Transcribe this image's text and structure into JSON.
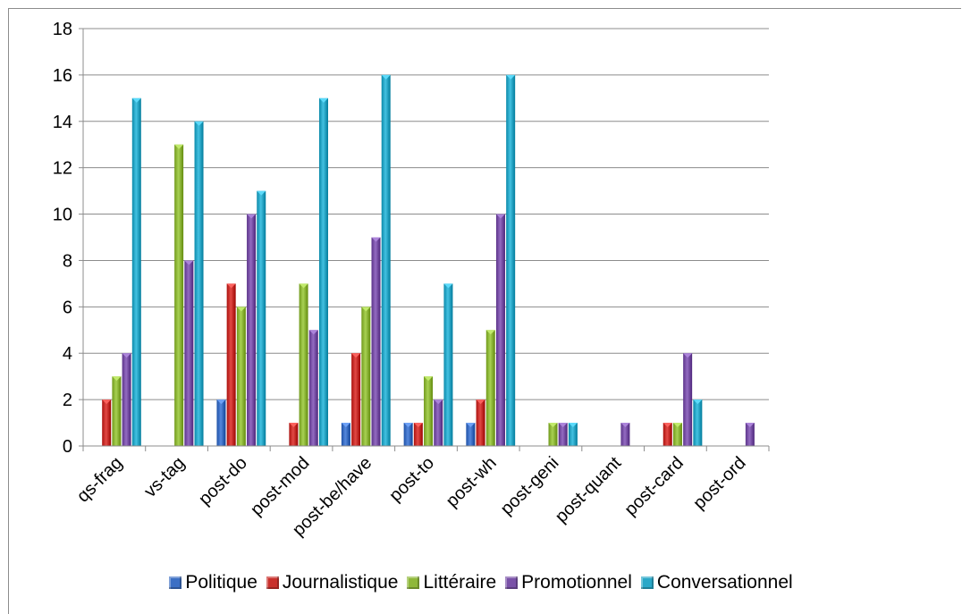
{
  "chart_data": {
    "type": "bar",
    "categories": [
      "qs-frag",
      "vs-tag",
      "post-do",
      "post-mod",
      "post-be/have",
      "post-to",
      "post-wh",
      "post-geni",
      "post-quant",
      "post-card",
      "post-ord"
    ],
    "series": [
      {
        "name": "Politique",
        "color": "#3c6fc4",
        "values": [
          0,
          0,
          2,
          0,
          1,
          1,
          1,
          0,
          0,
          0,
          0
        ]
      },
      {
        "name": "Journalistique",
        "color": "#c9302c",
        "values": [
          2,
          0,
          7,
          1,
          4,
          1,
          2,
          0,
          0,
          1,
          0
        ]
      },
      {
        "name": "Littéraire",
        "color": "#8fb83a",
        "values": [
          3,
          13,
          6,
          7,
          6,
          3,
          5,
          1,
          0,
          1,
          0
        ]
      },
      {
        "name": "Promotionnel",
        "color": "#7a52a8",
        "values": [
          4,
          8,
          10,
          5,
          9,
          2,
          10,
          1,
          1,
          4,
          1
        ]
      },
      {
        "name": "Conversationnel",
        "color": "#2aa8c8",
        "values": [
          15,
          14,
          11,
          15,
          16,
          7,
          16,
          1,
          0,
          2,
          0
        ]
      }
    ],
    "ylim": [
      0,
      18
    ],
    "yticks": [
      "0",
      "2",
      "4",
      "6",
      "8",
      "10",
      "12",
      "14",
      "16",
      "18"
    ],
    "grid": true,
    "legend_position": "bottom",
    "title": "",
    "xlabel": "",
    "ylabel": ""
  }
}
